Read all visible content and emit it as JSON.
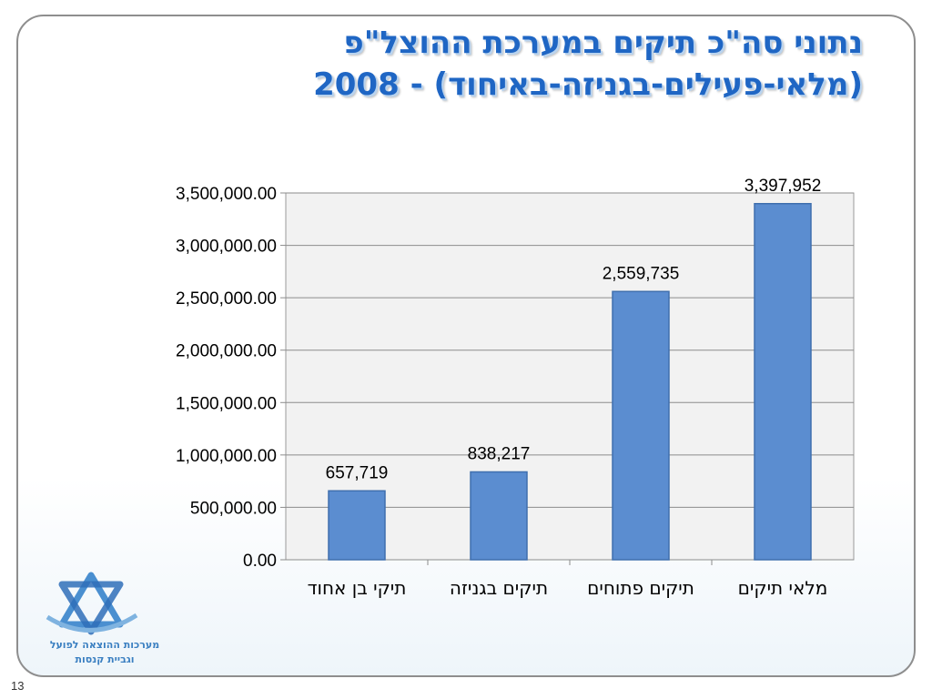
{
  "slide": {
    "title_line1": "נתוני סה\"כ תיקים במערכת ההוצל\"פ",
    "title_line2": "(מלאי-פעילים-בגניזה-באיחוד) - 2008",
    "page_number": "13"
  },
  "logo": {
    "line1": "מערכות ההוצאה לפועל",
    "line2": "וגביית קנסות"
  },
  "colors": {
    "title": "#1f66c4",
    "bar": "#5b8dd0",
    "bar_border": "#3f6fae",
    "plot_bg": "#f2f2f2"
  },
  "chart_data": {
    "type": "bar",
    "categories": [
      "תיקי בן אחוד",
      "תיקים בגניזה",
      "תיקים פתוחים",
      "מלאי תיקים"
    ],
    "values": [
      657719,
      838217,
      2559735,
      3397952
    ],
    "data_labels": [
      "657,719",
      "838,217",
      "2,559,735",
      "3,397,952"
    ],
    "ylim": [
      0,
      3500000
    ],
    "yticks": [
      0,
      500000,
      1000000,
      1500000,
      2000000,
      2500000,
      3000000,
      3500000
    ],
    "ytick_labels": [
      "0.00",
      "500,000.00",
      "1,000,000.00",
      "1,500,000.00",
      "2,000,000.00",
      "2,500,000.00",
      "3,000,000.00",
      "3,500,000.00"
    ],
    "grid": true,
    "legend": "none"
  }
}
